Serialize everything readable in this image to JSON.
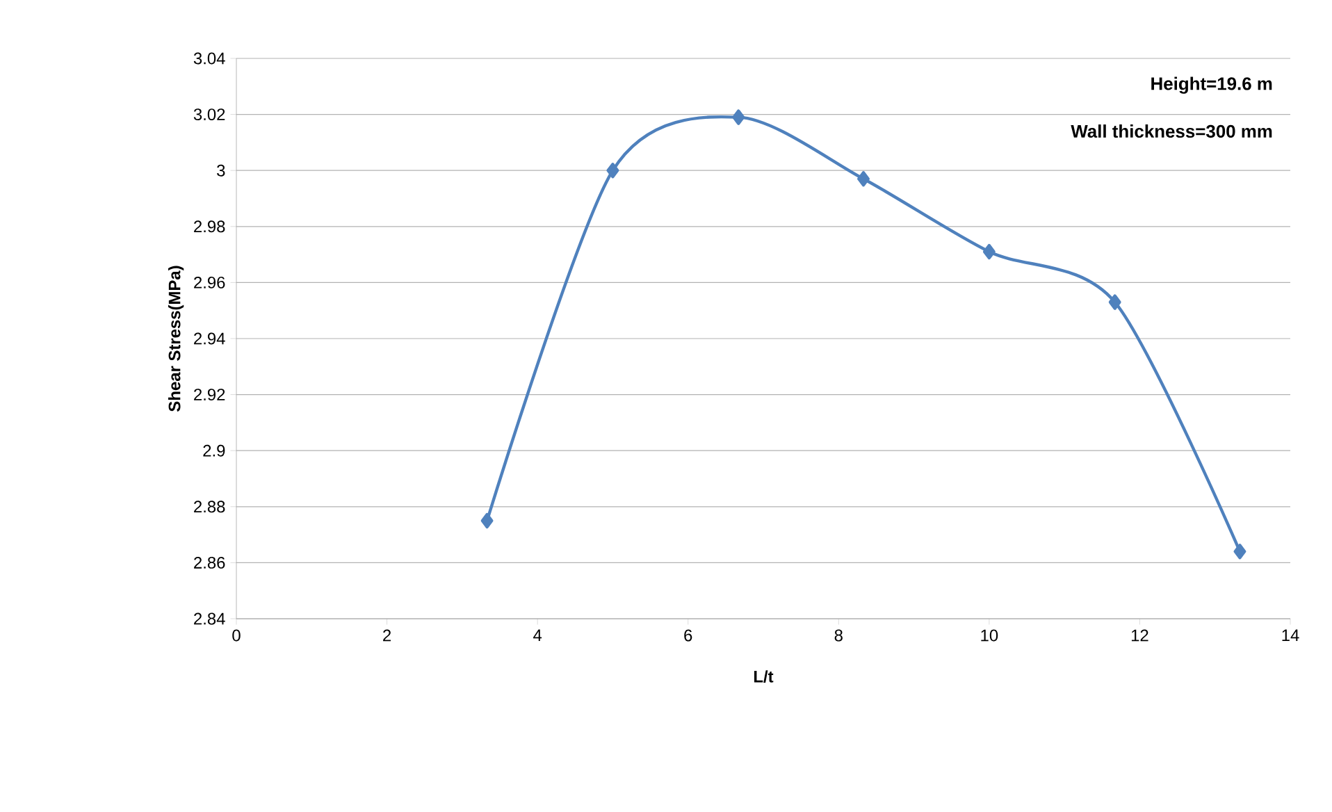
{
  "chart_data": {
    "type": "line",
    "xlabel": "L/t",
    "ylabel": "Shear Stress(MPa)",
    "annotations": [
      "Height=19.6 m",
      "Wall thickness=300 mm"
    ],
    "x": [
      3.33,
      5,
      6.67,
      8.33,
      10,
      11.67,
      13.33
    ],
    "series": [
      {
        "color": "#4f81bd",
        "values": [
          2.875,
          3.0,
          3.019,
          2.997,
          2.971,
          2.953,
          2.864
        ]
      }
    ],
    "xlim": [
      0,
      14
    ],
    "xticks": [
      0,
      2,
      4,
      6,
      8,
      10,
      12,
      14
    ],
    "ylim": [
      2.84,
      3.04
    ],
    "yticks": [
      2.84,
      2.86,
      2.88,
      2.9,
      2.92,
      2.94,
      2.96,
      2.98,
      3,
      3.02,
      3.04
    ],
    "grid": "y",
    "marker": "diamond",
    "line_style": "solid"
  }
}
